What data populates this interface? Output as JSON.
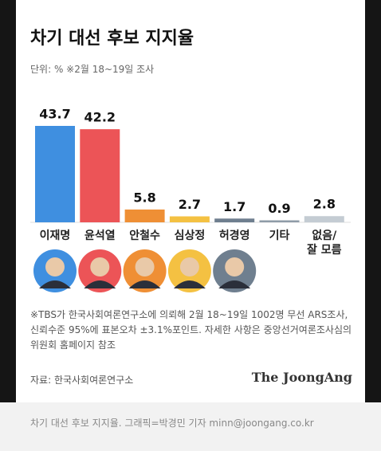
{
  "chart_data": {
    "type": "bar",
    "title": "차기 대선 후보 지지율",
    "subtitle": "단위: % ※2월 18~19일 조사",
    "categories": [
      "이재명",
      "윤석열",
      "안철수",
      "심상정",
      "허경영",
      "기타",
      "없음/\n잘 모름"
    ],
    "values": [
      43.7,
      42.2,
      5.8,
      2.7,
      1.7,
      0.9,
      2.8
    ],
    "colors": [
      "#3f8fe0",
      "#ec5457",
      "#ef8f35",
      "#f4c142",
      "#6f7f8f",
      "#8f9ca8",
      "#c4ccd3"
    ],
    "note": "※TBS가 한국사회여론연구소에 의뢰해 2월 18~19일 1002명 무선 ARS조사, 신뢰수준 95%에 표본오차 ±3.1%포인트. 자세한 사항은 중앙선거여론조사심의위원회 홈페이지 참조",
    "source": "자료: 한국사회여론연구소",
    "brand": "The JoongAng"
  },
  "caption": "차기 대선 후보 지지율. 그래픽=박경민 기자 minn@joongang.co.kr"
}
